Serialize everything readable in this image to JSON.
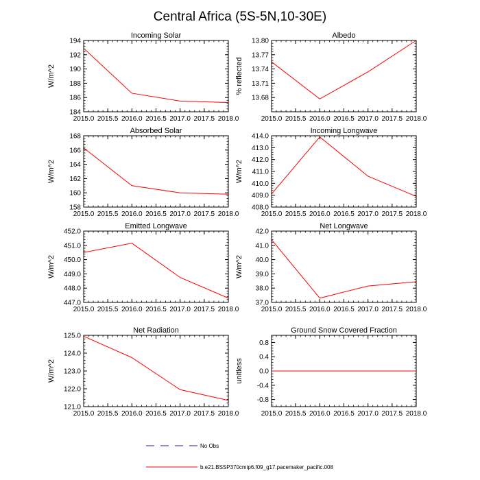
{
  "figure_title": "Central Africa (5S-5N,10-30E)",
  "colors": {
    "model_line": "#ff0000",
    "obs_line": "#1a1aa8",
    "axes": "#000000"
  },
  "legend": {
    "obs_label": "No Obs",
    "model_label": "b.e21.BSSP370cmip6.f09_g17.pacemaker_pacific.008"
  },
  "chart_data": [
    {
      "type": "line",
      "title": "Incoming Solar",
      "ylabel": "W/m^2",
      "x": [
        2015.0,
        2016.0,
        2017.0,
        2018.0
      ],
      "series": [
        {
          "values": [
            192.9,
            186.6,
            185.5,
            185.3
          ]
        }
      ],
      "xlim": [
        2015.0,
        2018.0
      ],
      "ylim": [
        184,
        194
      ],
      "xticks": [
        "2015.0",
        "2015.5",
        "2016.0",
        "2016.5",
        "2017.0",
        "2017.5",
        "2018.0"
      ],
      "yticks": [
        "184",
        "186",
        "188",
        "190",
        "192",
        "194"
      ]
    },
    {
      "type": "line",
      "title": "Albedo",
      "ylabel": "% reflected",
      "x": [
        2015.0,
        2016.0,
        2017.0,
        2018.0
      ],
      "series": [
        {
          "values": [
            13.755,
            13.677,
            13.734,
            13.8
          ]
        }
      ],
      "xlim": [
        2015.0,
        2018.0
      ],
      "ylim": [
        13.65,
        13.8
      ],
      "xticks": [
        "2015.0",
        "2015.5",
        "2016.0",
        "2016.5",
        "2017.0",
        "2017.5",
        "2018.0"
      ],
      "yticks": [
        "13.68",
        "13.71",
        "13.74",
        "13.77",
        "13.80"
      ]
    },
    {
      "type": "line",
      "title": "Absorbed Solar",
      "ylabel": "W/m^2",
      "x": [
        2015.0,
        2016.0,
        2017.0,
        2018.0
      ],
      "series": [
        {
          "values": [
            166.3,
            161.0,
            160.0,
            159.8
          ]
        }
      ],
      "xlim": [
        2015.0,
        2018.0
      ],
      "ylim": [
        158,
        168
      ],
      "xticks": [
        "2015.0",
        "2015.5",
        "2016.0",
        "2016.5",
        "2017.0",
        "2017.5",
        "2018.0"
      ],
      "yticks": [
        "158",
        "160",
        "162",
        "164",
        "166",
        "168"
      ]
    },
    {
      "type": "line",
      "title": "Incoming Longwave",
      "ylabel": "W/m^2",
      "x": [
        2015.0,
        2016.0,
        2017.0,
        2018.0
      ],
      "series": [
        {
          "values": [
            409.1,
            413.9,
            410.6,
            408.9
          ]
        }
      ],
      "xlim": [
        2015.0,
        2018.0
      ],
      "ylim": [
        408.0,
        414.0
      ],
      "xticks": [
        "2015.0",
        "2015.5",
        "2016.0",
        "2016.5",
        "2017.0",
        "2017.5",
        "2018.0"
      ],
      "yticks": [
        "408.0",
        "409.0",
        "410.0",
        "411.0",
        "412.0",
        "413.0",
        "414.0"
      ]
    },
    {
      "type": "line",
      "title": "Emitted Longwave",
      "ylabel": "W/m^2",
      "x": [
        2015.0,
        2016.0,
        2017.0,
        2018.0
      ],
      "series": [
        {
          "values": [
            450.5,
            451.15,
            448.75,
            447.3
          ]
        }
      ],
      "xlim": [
        2015.0,
        2018.0
      ],
      "ylim": [
        447.0,
        452.0
      ],
      "xticks": [
        "2015.0",
        "2015.5",
        "2016.0",
        "2016.5",
        "2017.0",
        "2017.5",
        "2018.0"
      ],
      "yticks": [
        "447.0",
        "448.0",
        "449.0",
        "450.0",
        "451.0",
        "452.0"
      ]
    },
    {
      "type": "line",
      "title": "Net Longwave",
      "ylabel": "W/m^2",
      "x": [
        2015.0,
        2016.0,
        2017.0,
        2018.0
      ],
      "series": [
        {
          "values": [
            41.4,
            37.3,
            38.15,
            38.45
          ]
        }
      ],
      "xlim": [
        2015.0,
        2018.0
      ],
      "ylim": [
        37.0,
        42.0
      ],
      "xticks": [
        "2015.0",
        "2015.5",
        "2016.0",
        "2016.5",
        "2017.0",
        "2017.5",
        "2018.0"
      ],
      "yticks": [
        "37.0",
        "38.0",
        "39.0",
        "40.0",
        "41.0",
        "42.0"
      ]
    },
    {
      "type": "line",
      "title": "Net Radiation",
      "ylabel": "W/m^2",
      "x": [
        2015.0,
        2016.0,
        2017.0,
        2018.0
      ],
      "series": [
        {
          "values": [
            124.95,
            123.75,
            121.95,
            121.35
          ]
        }
      ],
      "xlim": [
        2015.0,
        2018.0
      ],
      "ylim": [
        121.0,
        125.0
      ],
      "xticks": [
        "2015.0",
        "2015.5",
        "2016.0",
        "2016.5",
        "2017.0",
        "2017.5",
        "2018.0"
      ],
      "yticks": [
        "121.0",
        "122.0",
        "123.0",
        "124.0",
        "125.0"
      ]
    },
    {
      "type": "line",
      "title": "Ground Snow Covered Fraction",
      "ylabel": "unitless",
      "x": [
        2015.0,
        2016.0,
        2017.0,
        2018.0
      ],
      "series": [
        {
          "values": [
            0.0,
            0.0,
            0.0,
            0.0
          ]
        }
      ],
      "xlim": [
        2015.0,
        2018.0
      ],
      "ylim": [
        -1.0,
        1.0
      ],
      "xticks": [
        "2015.0",
        "2015.5",
        "2016.0",
        "2016.5",
        "2017.0",
        "2017.5",
        "2018.0"
      ],
      "yticks": [
        "-0.8",
        "-0.4",
        "0.0",
        "0.4",
        "0.8"
      ]
    }
  ]
}
